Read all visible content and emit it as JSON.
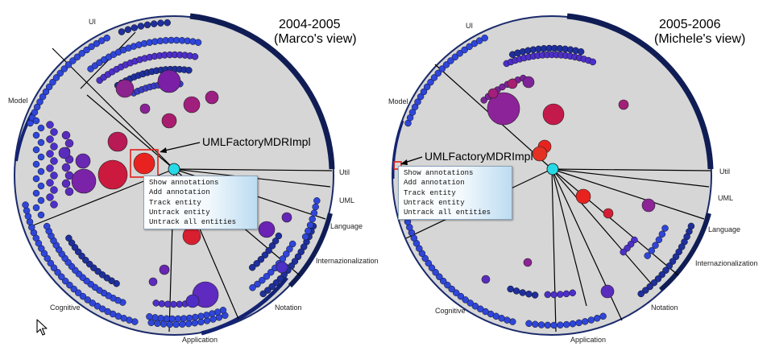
{
  "views": [
    {
      "id": "left",
      "title_line1": "2004-2005",
      "title_line2": "(Marco's view)",
      "selected_entity": "UMLFactoryMDRImpl",
      "sectors": [
        "UI",
        "Model",
        "Cognitive",
        "Application",
        "Notation",
        "Internazionalization",
        "Language",
        "UML",
        "Util"
      ]
    },
    {
      "id": "right",
      "title_line1": "2005-2006",
      "title_line2": "(Michele's view)",
      "selected_entity": "UMLFactoryMDRImpl",
      "sectors": [
        "UI",
        "Model",
        "Cognitive",
        "Application",
        "Notation",
        "Internazionalization",
        "Language",
        "UML",
        "Util"
      ]
    }
  ],
  "context_menu": {
    "items": [
      "Show annotations",
      "Add annotation",
      "Track entity",
      "Untrack entity",
      "Untrack all entities"
    ]
  },
  "colors": {
    "disk": "#d6d6d6",
    "rim": "#1a2a6b",
    "small_entity": "#2f46d9",
    "hub": "#27d9e6",
    "highlight_box": "#e0201a"
  },
  "icons": {
    "cursor": "mouse-pointer-icon"
  }
}
